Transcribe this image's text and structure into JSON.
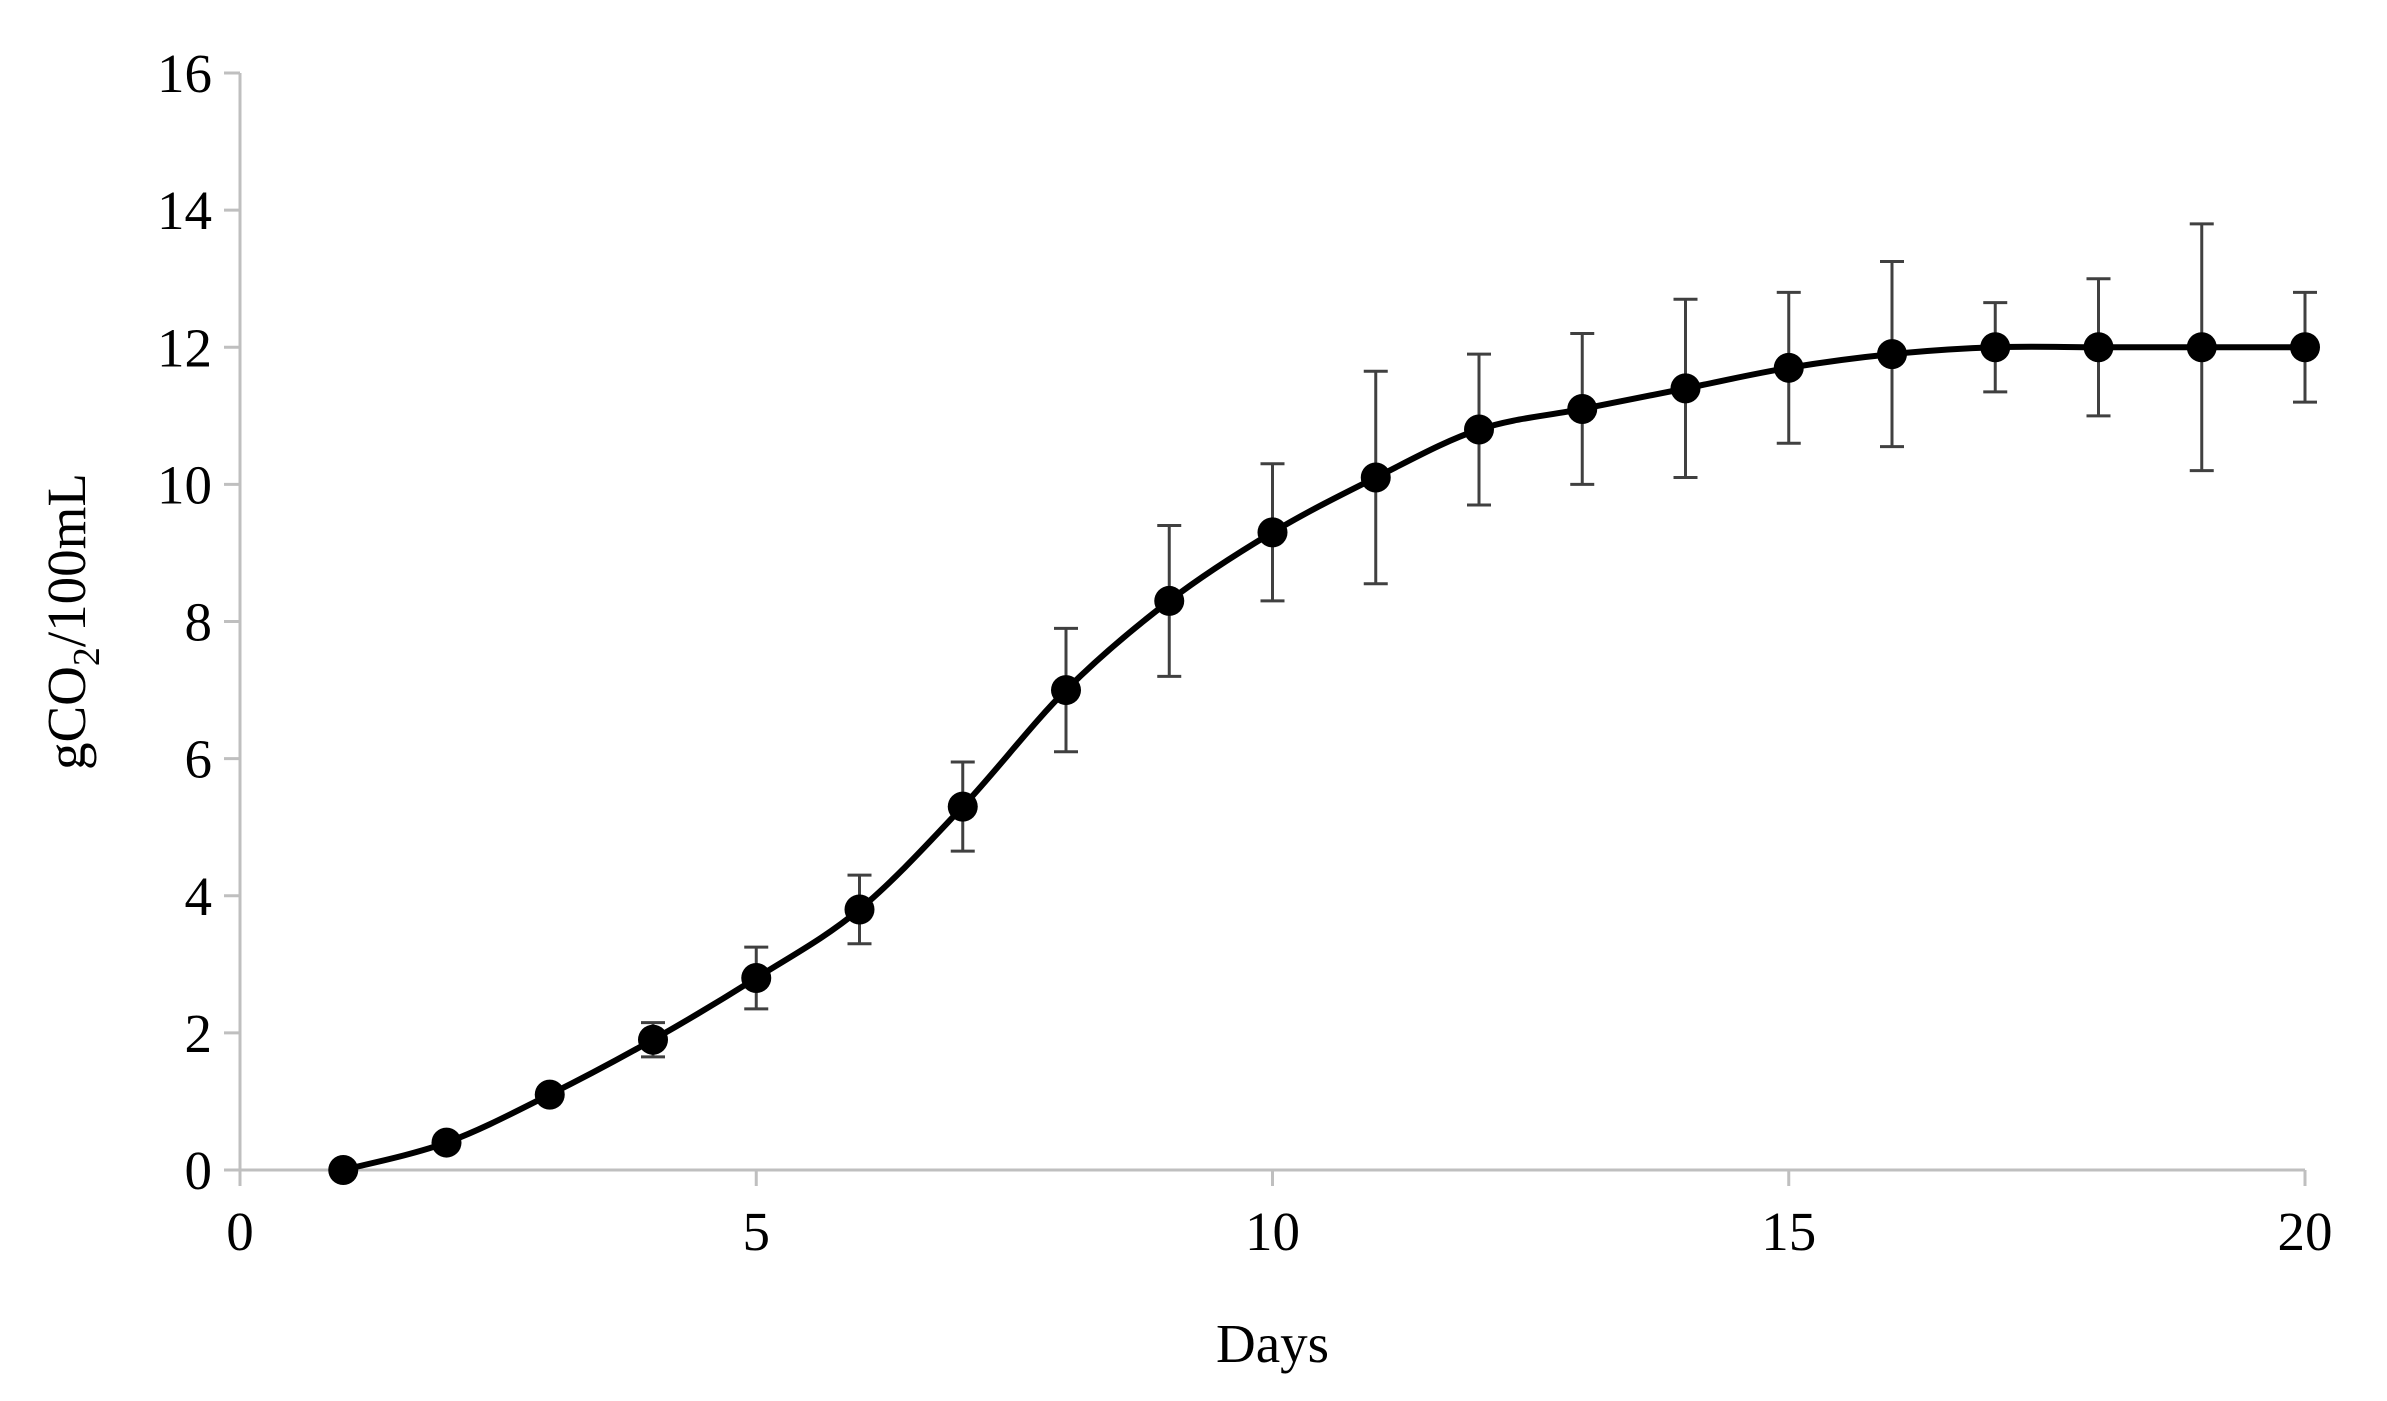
{
  "chart_data": {
    "type": "line",
    "title": "",
    "xlabel": "Days",
    "ylabel": {
      "prefix": "gCO",
      "subscript": "2",
      "suffix": "/100mL"
    },
    "xlim": [
      0,
      20
    ],
    "ylim": [
      0,
      16
    ],
    "x_ticks": [
      0,
      5,
      10,
      15,
      20
    ],
    "y_ticks": [
      0,
      2,
      4,
      6,
      8,
      10,
      12,
      14,
      16
    ],
    "grid": false,
    "legend": "none",
    "colors": {
      "line": "#000000",
      "marker": "#000000",
      "error_bar": "#404040",
      "axis": "#bfbfbf"
    },
    "series": [
      {
        "x": [
          1,
          2,
          3,
          4,
          5,
          6,
          7,
          8,
          9,
          10,
          11,
          12,
          13,
          14,
          15,
          16,
          17,
          18,
          19,
          20
        ],
        "y": [
          0,
          0.4,
          1.1,
          1.9,
          2.8,
          3.8,
          5.3,
          7.0,
          8.3,
          9.3,
          10.1,
          10.8,
          11.1,
          11.4,
          11.7,
          11.9,
          12.0,
          12.0,
          12.0,
          12.0
        ],
        "error": [
          0,
          0,
          0,
          0.25,
          0.45,
          0.5,
          0.65,
          0.9,
          1.1,
          1.0,
          1.55,
          1.1,
          1.1,
          1.3,
          1.1,
          1.35,
          0.65,
          1.0,
          1.8,
          0.8
        ]
      }
    ]
  }
}
